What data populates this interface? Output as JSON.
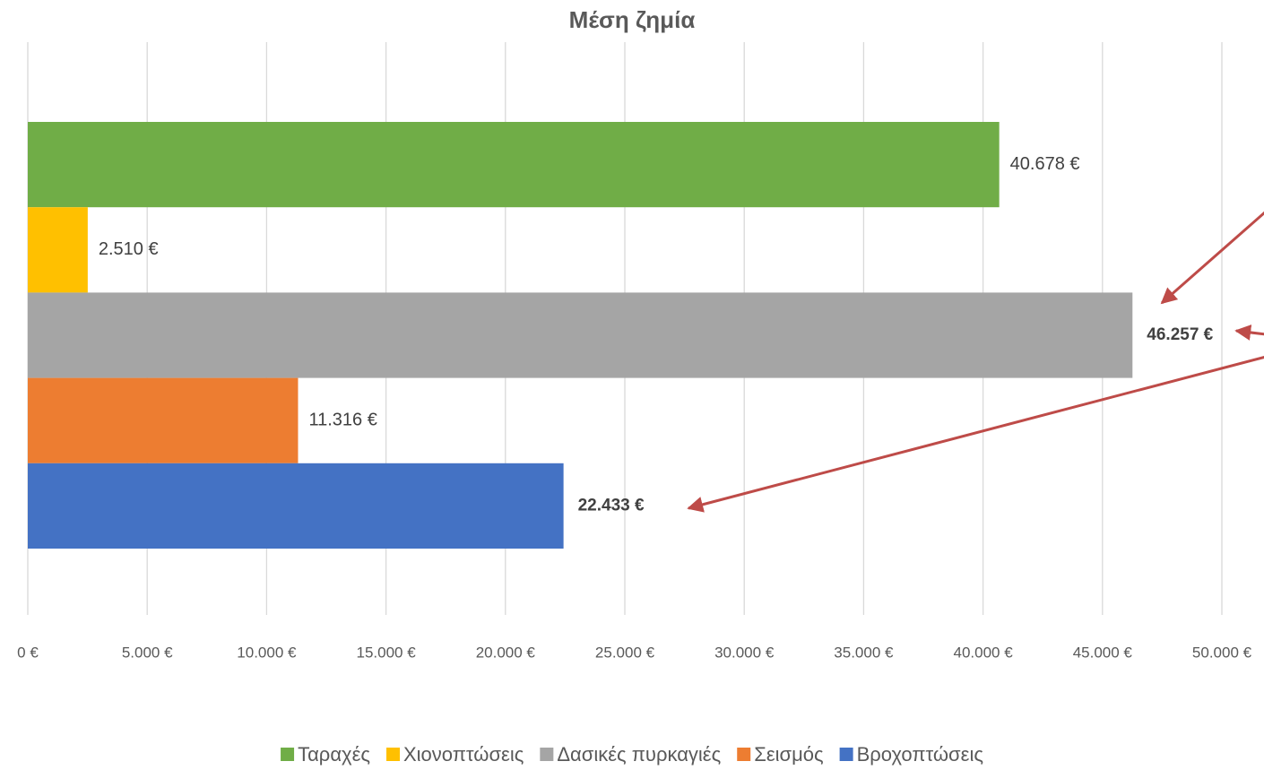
{
  "chart_data": {
    "type": "bar",
    "orientation": "horizontal",
    "title": "Μέση ζημία",
    "categories": [
      null
    ],
    "series": [
      {
        "name": "Ταραχές",
        "color": "#70ad47",
        "values": [
          40678
        ],
        "value_labels": [
          "40.678 €"
        ]
      },
      {
        "name": "Χιονοπτώσεις",
        "color": "#ffc000",
        "values": [
          2510
        ],
        "value_labels": [
          "2.510 €"
        ]
      },
      {
        "name": "Δασικές πυρκαγιές",
        "color": "#a5a5a5",
        "values": [
          46257
        ],
        "value_labels": [
          "46.257 €"
        ]
      },
      {
        "name": "Σεισμός",
        "color": "#ed7d31",
        "values": [
          11316
        ],
        "value_labels": [
          "11.316 €"
        ]
      },
      {
        "name": "Βροχοπτώσεις",
        "color": "#4472c4",
        "values": [
          22433
        ],
        "value_labels": [
          "22.433 €"
        ]
      }
    ],
    "xlim": [
      0,
      50000
    ],
    "xticks": [
      {
        "value": 0,
        "label": "0 €"
      },
      {
        "value": 5000,
        "label": "5.000 €"
      },
      {
        "value": 10000,
        "label": "10.000 €"
      },
      {
        "value": 15000,
        "label": "15.000 €"
      },
      {
        "value": 20000,
        "label": "20.000 €"
      },
      {
        "value": 25000,
        "label": "25.000 €"
      },
      {
        "value": 30000,
        "label": "30.000 €"
      },
      {
        "value": 35000,
        "label": "35.000 €"
      },
      {
        "value": 40000,
        "label": "40.000 €"
      },
      {
        "value": 45000,
        "label": "45.000 €"
      },
      {
        "value": 50000,
        "label": "50.000 €"
      }
    ],
    "grid": true,
    "legend": "bottom"
  }
}
